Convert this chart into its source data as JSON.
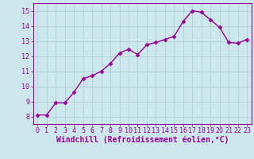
{
  "x": [
    0,
    1,
    2,
    3,
    4,
    5,
    6,
    7,
    8,
    9,
    10,
    11,
    12,
    13,
    14,
    15,
    16,
    17,
    18,
    19,
    20,
    21,
    22,
    23
  ],
  "y": [
    8.1,
    8.1,
    8.9,
    8.9,
    9.6,
    10.5,
    10.7,
    11.0,
    11.5,
    12.2,
    12.45,
    12.1,
    12.75,
    12.9,
    13.1,
    13.3,
    14.3,
    15.0,
    14.9,
    14.4,
    13.9,
    12.9,
    12.85,
    13.1
  ],
  "line_color": "#990099",
  "marker": "D",
  "marker_size": 2.5,
  "bg_color": "#cce8ec",
  "grid_color": "#aacccc",
  "xlabel": "Windchill (Refroidissement éolien,°C)",
  "xlabel_color": "#990099",
  "xlim": [
    -0.5,
    23.5
  ],
  "ylim": [
    7.5,
    15.5
  ],
  "yticks": [
    8,
    9,
    10,
    11,
    12,
    13,
    14,
    15
  ],
  "xticks": [
    0,
    1,
    2,
    3,
    4,
    5,
    6,
    7,
    8,
    9,
    10,
    11,
    12,
    13,
    14,
    15,
    16,
    17,
    18,
    19,
    20,
    21,
    22,
    23
  ],
  "tick_color": "#990099",
  "tick_fontsize": 6.0,
  "xlabel_fontsize": 7.0,
  "line_width": 1.0
}
